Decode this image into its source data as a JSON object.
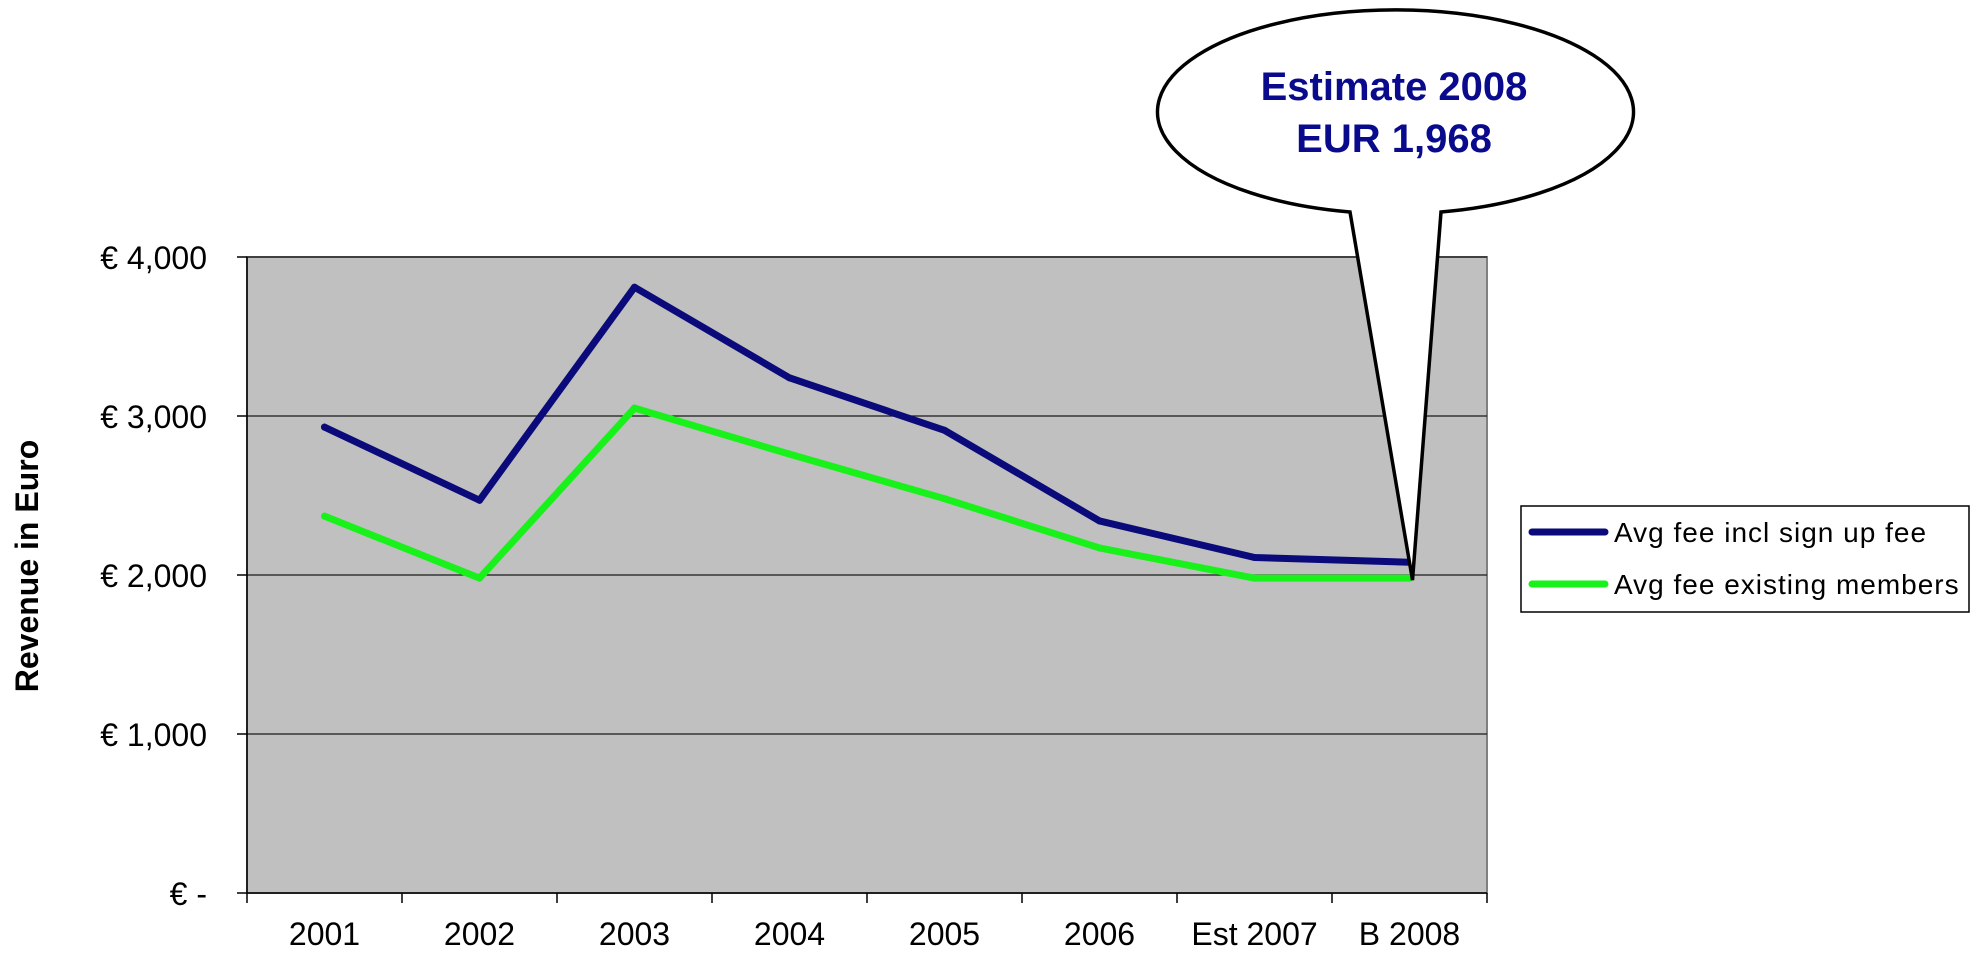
{
  "chart_data": {
    "type": "line",
    "categories": [
      "2001",
      "2002",
      "2003",
      "2004",
      "2005",
      "2006",
      "Est 2007",
      "B 2008"
    ],
    "series": [
      {
        "name": "Avg fee incl sign up fee",
        "values": [
          2930,
          2470,
          3810,
          3240,
          2910,
          2340,
          2110,
          2080
        ],
        "color": "#0a0a7a"
      },
      {
        "name": "Avg fee existing members",
        "values": [
          2370,
          1980,
          3050,
          2760,
          2480,
          2170,
          1980,
          1980
        ],
        "color": "#19f21a"
      }
    ],
    "ylabel": "Revenue in Euro",
    "xlabel": "",
    "title": "",
    "ylim": [
      0,
      4000
    ],
    "yticks": [
      0,
      1000,
      2000,
      3000,
      4000
    ],
    "ytick_labels": [
      "€ -",
      "€ 1,000",
      "€ 2,000",
      "€ 3,000",
      "€ 4,000"
    ],
    "grid": true,
    "plot_background": "#c0c0c0",
    "legend_position": "right",
    "annotation": {
      "lines": [
        "Estimate 2008",
        "EUR 1,968"
      ],
      "target_category": "B 2008",
      "target_value": 1968,
      "color": "#0a0a8c"
    }
  }
}
